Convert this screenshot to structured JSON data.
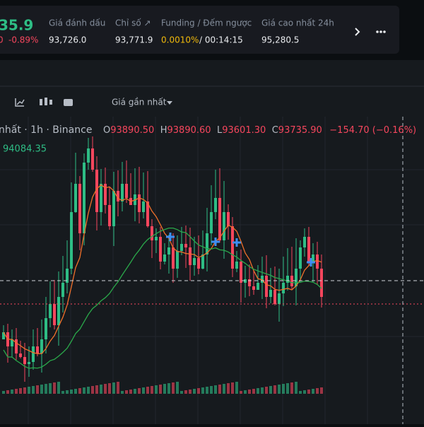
{
  "header": {
    "price": "35.9",
    "change_prefix": "0",
    "change": "-0.89%",
    "stats": [
      {
        "label": "Giá đánh dấu",
        "value": "93,726.0"
      },
      {
        "label": "Chỉ số ↗",
        "value": "93,771.9"
      },
      {
        "label": "Funding / Đếm ngược",
        "value": "0.0010%",
        "extra": "/ 00:14:15"
      },
      {
        "label": "Giá cao nhất 24h",
        "value": "95,280.5"
      }
    ]
  },
  "toolbar": {
    "price_type": "Giá gần nhất"
  },
  "legend": {
    "symbol": "nhất · 1h · Binance",
    "o_label": "O",
    "o": "93890.50",
    "h_label": "H",
    "h": "93890.60",
    "l_label": "L",
    "l": "93601.30",
    "c_label": "C",
    "c": "93735.90",
    "change": "−154.70 (−0.16%)",
    "ma": "94084.35"
  }
}
